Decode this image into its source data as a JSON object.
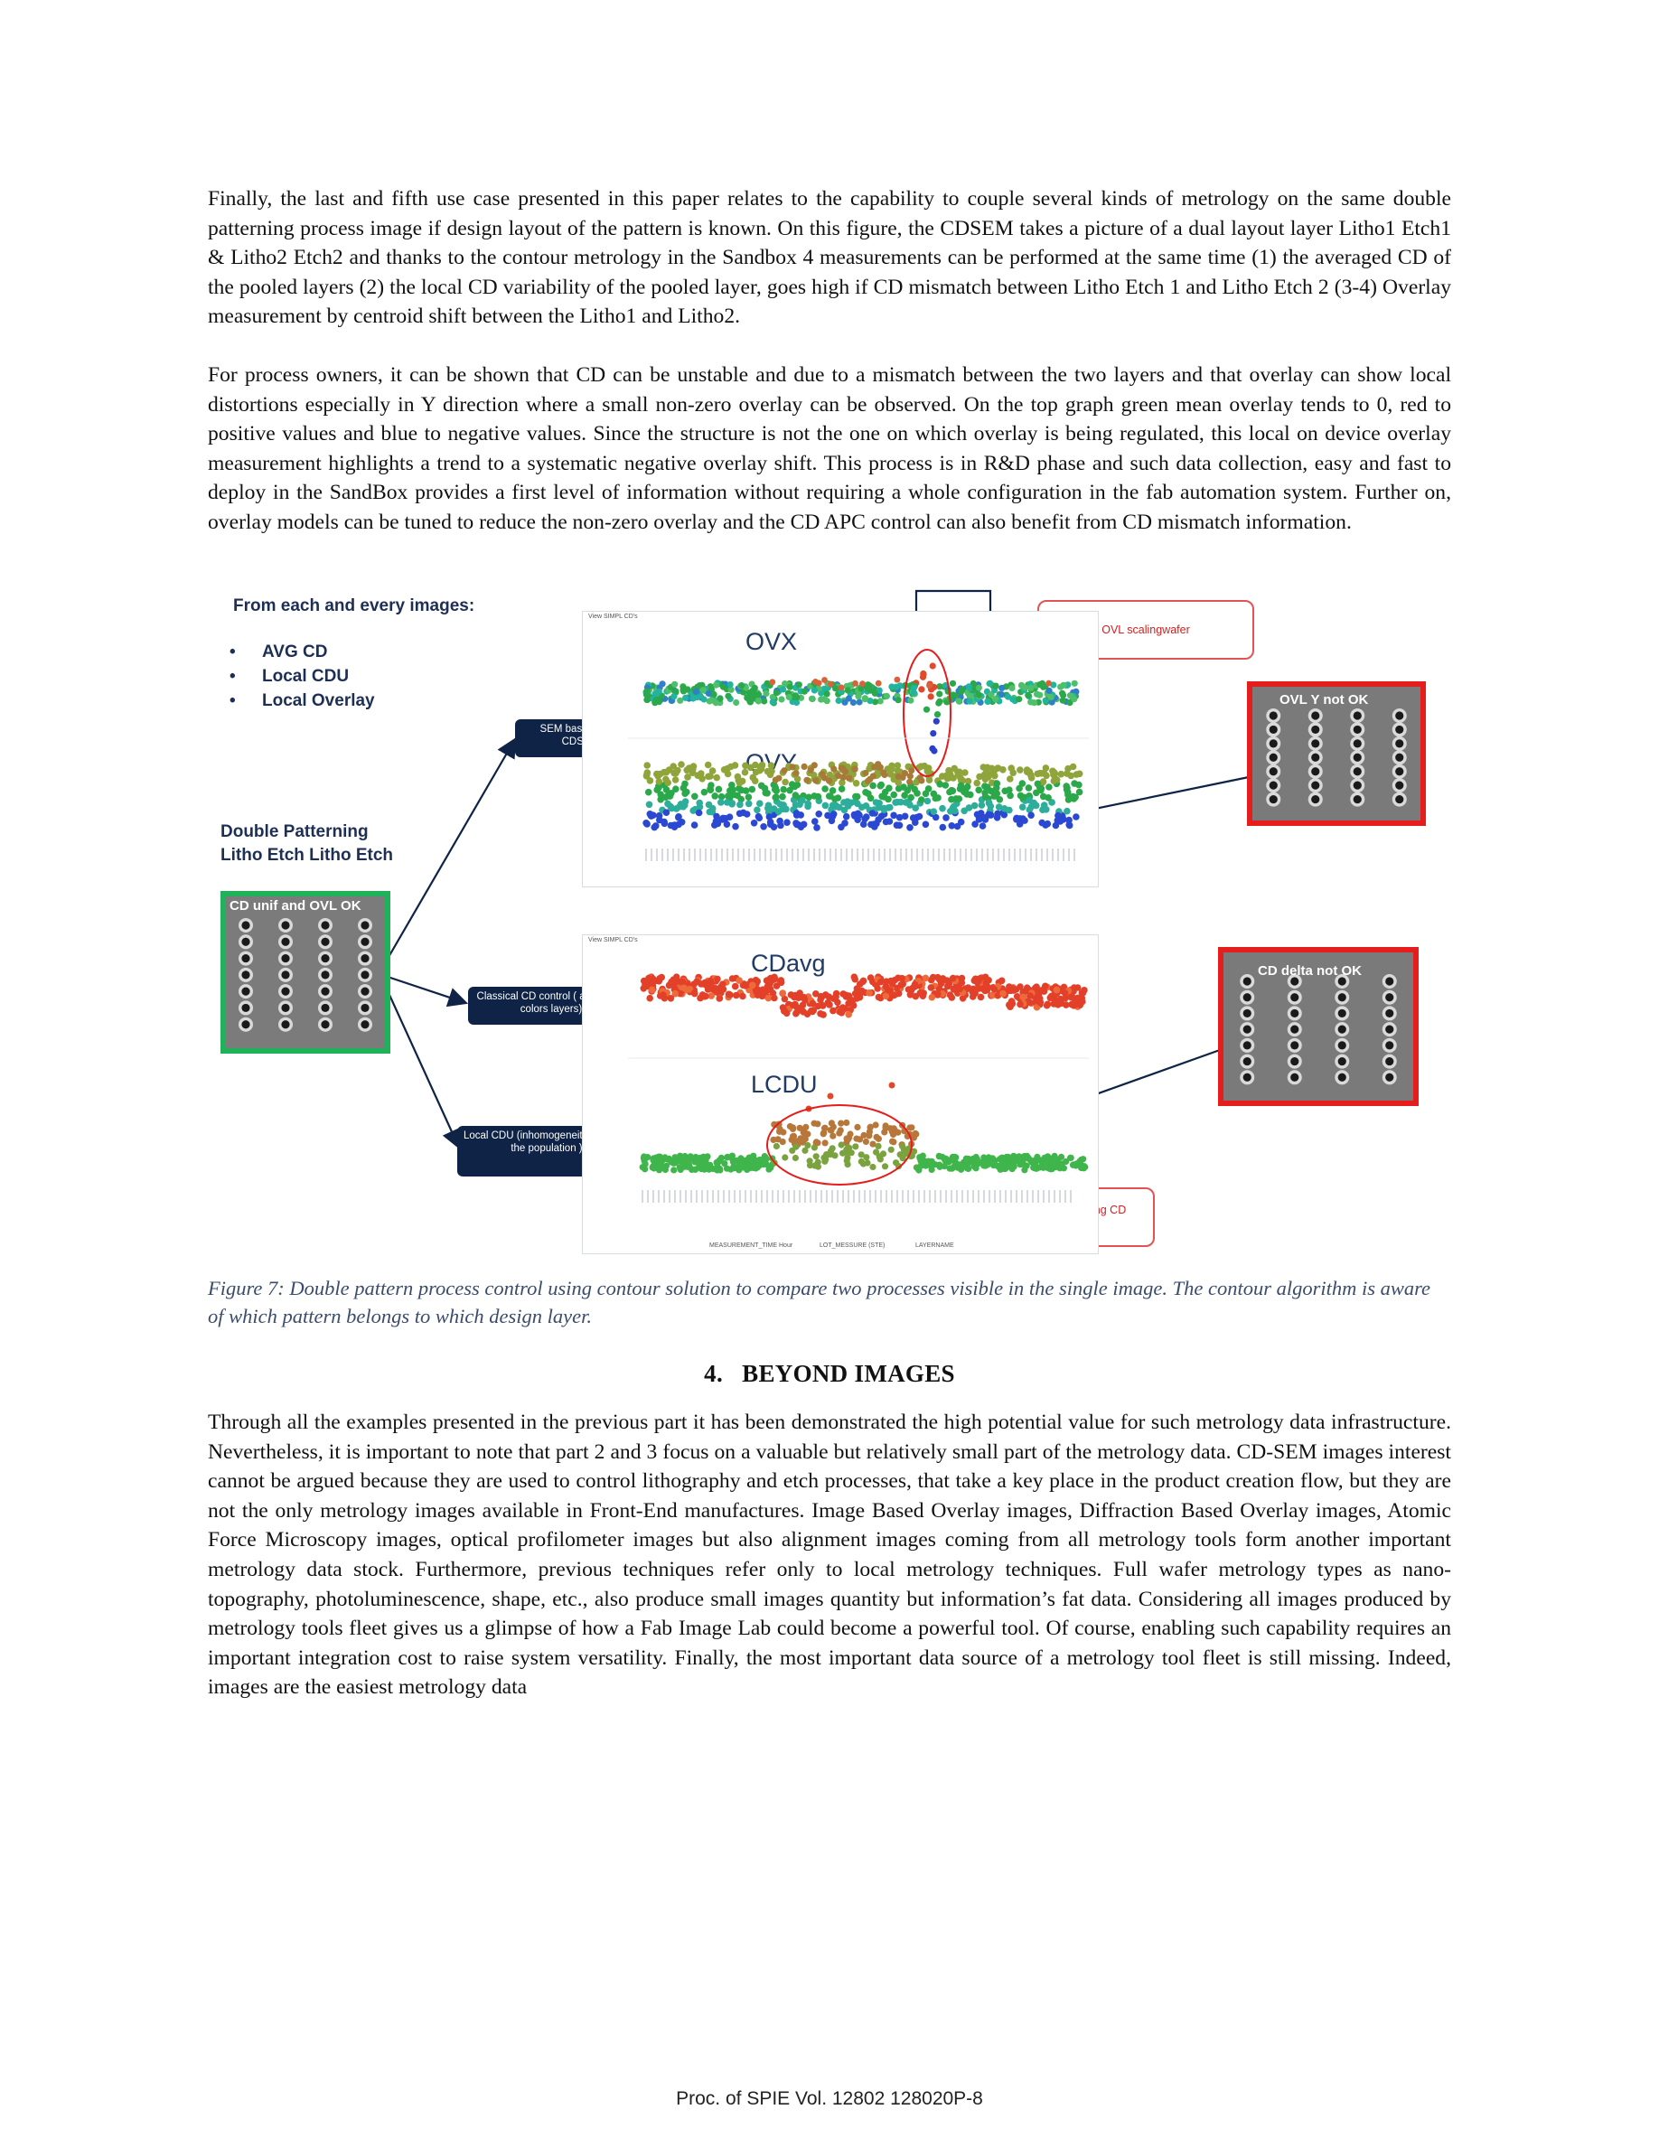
{
  "paragraphs": [
    "Finally, the last and fifth use case presented in this paper relates to the capability to couple several kinds of metrology on the same double patterning process image if design layout of the pattern is known. On this figure, the CDSEM takes a picture of a dual layout layer Litho1 Etch1 & Litho2 Etch2 and thanks to the contour metrology in the Sandbox 4 measurements can be performed at the same time (1) the averaged CD of the pooled layers (2) the local CD variability of the pooled layer, goes high if CD mismatch between Litho Etch 1 and Litho Etch 2 (3-4) Overlay measurement by centroid shift between the Litho1 and Litho2.",
    "For process owners, it can be shown that CD can be unstable and due to a mismatch between the two layers and that overlay can show local distortions especially in Y direction where a small non-zero overlay can be observed. On the top graph green mean overlay tends to 0, red to positive values and blue to negative values. Since the structure is not the one on which overlay is being regulated, this local on device overlay measurement highlights a trend to a systematic negative overlay shift. This process is in R&D phase and such data collection, easy and fast to deploy in the SandBox provides a first level of information without requiring a whole configuration in the fab automation system. Further on, overlay models can be tuned to reduce the non-zero overlay and the CD APC control can also benefit from CD mismatch information."
  ],
  "figure": {
    "heading_each": "From each and every images:",
    "bullets": [
      "AVG CD",
      "Local CDU",
      "Local Overlay"
    ],
    "heading_dp_1": "Double Patterning",
    "heading_dp_2": "Litho Etch Litho Etch",
    "sem_ok_label": "CD unif and OVL OK",
    "sem_ovl_bad_label": "OVL Y not OK",
    "sem_cd_bad_label": "CD delta not OK",
    "box_sem_ovl": "SEM based OVL control on CDSEM MESDIM",
    "box_classical_cd": "Classical  CD control ( average 2 colors layers)",
    "box_local_cdu": "Local CDU (inhomogeneity between the population )",
    "callout_ovl_scaling": "OVL scalingwafer",
    "callout_excursion": "Excursion DoublePatterning CD control",
    "chart_titles": [
      "OVX",
      "OVY",
      "CDavg",
      "LCDU"
    ],
    "panel_tab": "View SIMPL CD's",
    "axis_footer_items": [
      "MEASUREMENT_TIME Hour",
      "LOT_MESSURE (STE)",
      "LAYERNAME"
    ],
    "colors": {
      "navy": "#0e2345",
      "green_frame": "#1fb25a",
      "red_frame": "#e51d1d",
      "callout_red": "#e25454"
    }
  },
  "caption": "Figure 7: Double pattern process control using contour solution to compare two processes visible in the single image. The contour algorithm is aware of which pattern belongs to which design layer.",
  "section": {
    "number": "4.",
    "title": "BEYOND IMAGES"
  },
  "paragraph_beyond": "Through all the examples presented in the previous part it has been demonstrated the high potential value for such metrology data infrastructure. Nevertheless, it is important to note that part 2 and 3 focus on a valuable but relatively small part of the metrology data. CD-SEM images interest cannot be argued because they are used to control lithography and etch processes, that take a key place in the product creation flow, but they are not the only metrology images available in Front-End manufactures. Image Based Overlay images, Diffraction Based Overlay images, Atomic Force Microscopy images, optical profilometer images but also alignment images coming from all metrology tools form another important metrology data stock. Furthermore, previous techniques refer only to local metrology techniques. Full wafer metrology types as nano-topography, photoluminescence, shape, etc., also produce small images quantity but information’s fat data. Considering all images produced by metrology tools fleet gives us a glimpse of how a Fab Image Lab could become a powerful tool. Of course, enabling such capability requires an important integration cost to raise system versatility. Finally, the most important data source of a metrology tool fleet is still missing. Indeed, images are the easiest metrology data",
  "footer": "Proc. of SPIE Vol. 12802  128020P-8"
}
